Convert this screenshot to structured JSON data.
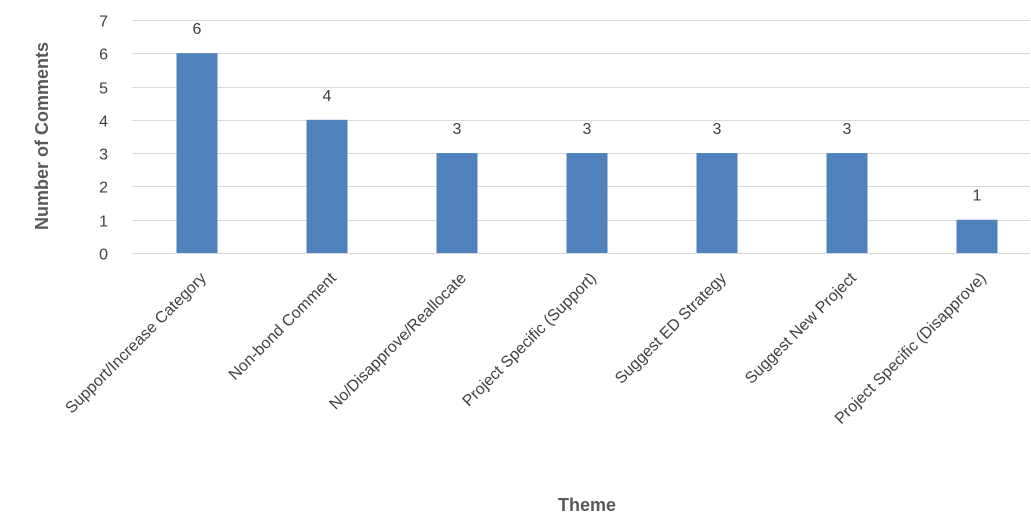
{
  "chart_data": {
    "type": "bar",
    "title": "",
    "xlabel": "Theme",
    "ylabel": "Number of Comments",
    "categories": [
      "Support/Increase Category",
      "Non-bond Comment",
      "No/Disapprove/Reallocate",
      "Project Specific (Support)",
      "Suggest ED Strategy",
      "Suggest New Project",
      "Project Specific (Disapprove)"
    ],
    "values": [
      6,
      4,
      3,
      3,
      3,
      3,
      1
    ],
    "ylim": [
      0,
      7
    ],
    "yticks": [
      0,
      1,
      2,
      3,
      4,
      5,
      6,
      7
    ],
    "grid": true,
    "data_labels": true,
    "bar_color": "#4f81bd",
    "grid_color": "#d9d9d9"
  }
}
